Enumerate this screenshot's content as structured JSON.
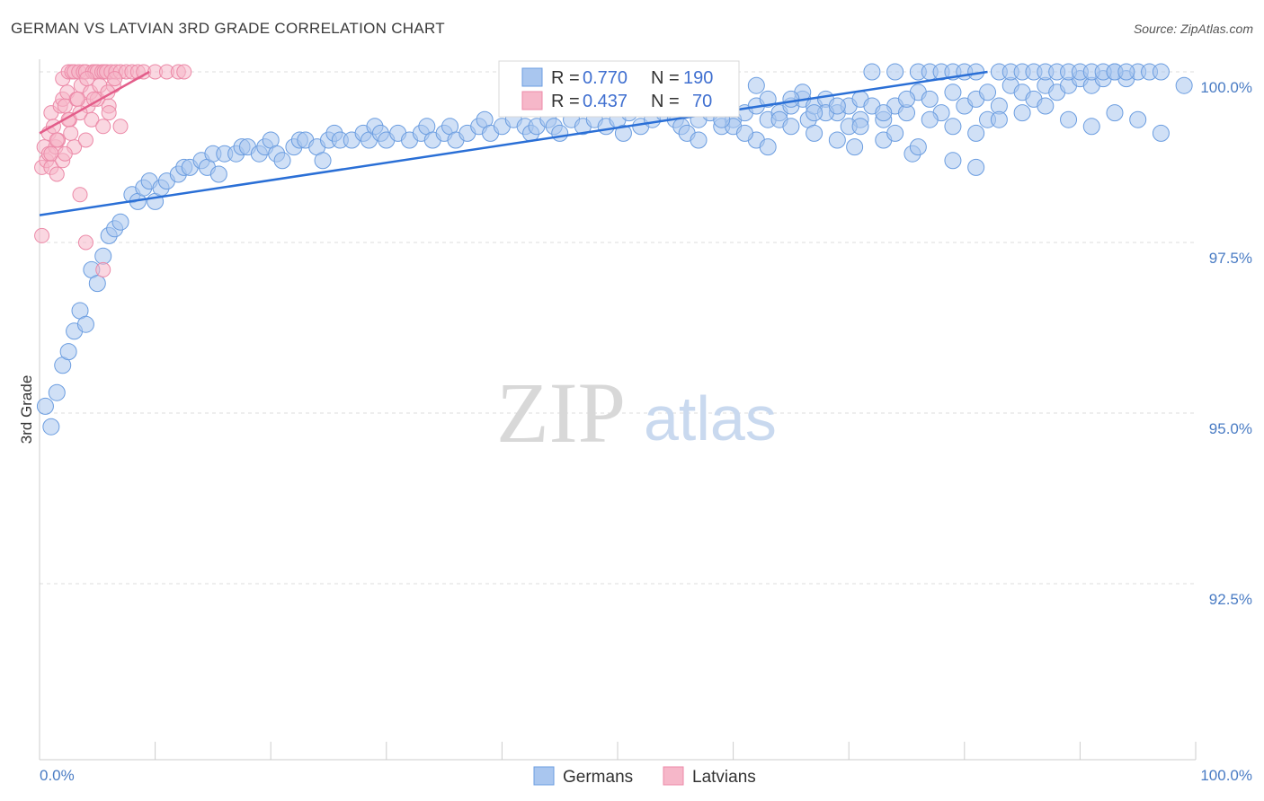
{
  "header": {
    "title": "GERMAN VS LATVIAN 3RD GRADE CORRELATION CHART",
    "source": "Source: ZipAtlas.com"
  },
  "watermark": {
    "zip": "ZIP",
    "atlas": "atlas"
  },
  "stats": {
    "germans": {
      "r_label": "R = ",
      "r_value": "0.770",
      "n_label": "N = ",
      "n_value": "190"
    },
    "latvians": {
      "r_label": "R = ",
      "r_value": "0.437",
      "n_label": "N = ",
      "n_value": "70"
    }
  },
  "legend": {
    "germans": "Germans",
    "latvians": "Latvians"
  },
  "colors": {
    "germans_fill": "#a9c6ef",
    "germans_stroke": "#6b9de0",
    "germans_line": "#2a6fd6",
    "latvians_fill": "#f6b7c9",
    "latvians_stroke": "#ec8aa8",
    "latvians_line": "#e35d8a",
    "tick_text": "#4a7cc4",
    "grid": "#dddddd"
  },
  "chart_data": {
    "type": "scatter",
    "title": "GERMAN VS LATVIAN 3RD GRADE CORRELATION CHART",
    "xlabel": "",
    "ylabel": "3rd Grade",
    "xlim": [
      0,
      100
    ],
    "ylim": [
      90.0,
      100.2
    ],
    "x_tick_labels": [
      "0.0%",
      "100.0%"
    ],
    "y_ticks": [
      100.0,
      97.5,
      95.0,
      92.5
    ],
    "y_tick_labels": [
      "100.0%",
      "97.5%",
      "95.0%",
      "92.5%"
    ],
    "grid": true,
    "legend_position": "bottom-center",
    "series": [
      {
        "name": "Germans",
        "trend": [
          [
            0,
            97.9
          ],
          [
            82,
            100.0
          ]
        ],
        "points": [
          [
            0.5,
            95.1
          ],
          [
            1,
            94.8
          ],
          [
            1.5,
            95.3
          ],
          [
            2,
            95.7
          ],
          [
            2.5,
            95.9
          ],
          [
            3,
            96.2
          ],
          [
            3.5,
            96.5
          ],
          [
            4,
            96.3
          ],
          [
            4.5,
            97.1
          ],
          [
            5,
            96.9
          ],
          [
            5.5,
            97.3
          ],
          [
            6,
            97.6
          ],
          [
            6.5,
            97.7
          ],
          [
            7,
            97.8
          ],
          [
            8,
            98.2
          ],
          [
            8.5,
            98.1
          ],
          [
            9,
            98.3
          ],
          [
            9.5,
            98.4
          ],
          [
            10,
            98.1
          ],
          [
            10.5,
            98.3
          ],
          [
            11,
            98.4
          ],
          [
            12,
            98.5
          ],
          [
            12.5,
            98.6
          ],
          [
            13,
            98.6
          ],
          [
            14,
            98.7
          ],
          [
            14.5,
            98.6
          ],
          [
            15,
            98.8
          ],
          [
            15.5,
            98.5
          ],
          [
            16,
            98.8
          ],
          [
            17,
            98.8
          ],
          [
            17.5,
            98.9
          ],
          [
            18,
            98.9
          ],
          [
            19,
            98.8
          ],
          [
            19.5,
            98.9
          ],
          [
            20,
            99.0
          ],
          [
            20.5,
            98.8
          ],
          [
            21,
            98.7
          ],
          [
            22,
            98.9
          ],
          [
            22.5,
            99.0
          ],
          [
            23,
            99.0
          ],
          [
            24,
            98.9
          ],
          [
            24.5,
            98.7
          ],
          [
            25,
            99.0
          ],
          [
            25.5,
            99.1
          ],
          [
            26,
            99.0
          ],
          [
            27,
            99.0
          ],
          [
            28,
            99.1
          ],
          [
            28.5,
            99.0
          ],
          [
            29,
            99.2
          ],
          [
            29.5,
            99.1
          ],
          [
            30,
            99.0
          ],
          [
            31,
            99.1
          ],
          [
            32,
            99.0
          ],
          [
            33,
            99.1
          ],
          [
            33.5,
            99.2
          ],
          [
            34,
            99.0
          ],
          [
            35,
            99.1
          ],
          [
            35.5,
            99.2
          ],
          [
            36,
            99.0
          ],
          [
            37,
            99.1
          ],
          [
            38,
            99.2
          ],
          [
            38.5,
            99.3
          ],
          [
            39,
            99.1
          ],
          [
            40,
            99.2
          ],
          [
            41,
            99.3
          ],
          [
            42,
            99.2
          ],
          [
            42.5,
            99.1
          ],
          [
            43,
            99.2
          ],
          [
            44,
            99.3
          ],
          [
            44.5,
            99.2
          ],
          [
            45,
            99.1
          ],
          [
            46,
            99.3
          ],
          [
            47,
            99.2
          ],
          [
            48,
            99.3
          ],
          [
            49,
            99.2
          ],
          [
            50,
            99.3
          ],
          [
            50.5,
            99.1
          ],
          [
            51,
            99.4
          ],
          [
            52,
            99.2
          ],
          [
            53,
            99.3
          ],
          [
            54,
            99.4
          ],
          [
            55,
            99.3
          ],
          [
            55.5,
            99.2
          ],
          [
            56,
            99.1
          ],
          [
            57,
            99.3
          ],
          [
            58,
            99.4
          ],
          [
            59,
            99.2
          ],
          [
            60,
            99.3
          ],
          [
            61,
            99.4
          ],
          [
            62,
            99.5
          ],
          [
            63,
            99.3
          ],
          [
            64,
            99.4
          ],
          [
            65,
            99.5
          ],
          [
            66,
            99.6
          ],
          [
            66.5,
            99.3
          ],
          [
            67,
            99.5
          ],
          [
            68,
            99.6
          ],
          [
            69,
            99.4
          ],
          [
            70,
            99.5
          ],
          [
            70.5,
            98.9
          ],
          [
            71,
            99.6
          ],
          [
            72,
            99.5
          ],
          [
            73,
            99.3
          ],
          [
            74,
            99.5
          ],
          [
            75,
            99.4
          ],
          [
            75.5,
            98.8
          ],
          [
            76,
            99.7
          ],
          [
            77,
            99.6
          ],
          [
            78,
            99.4
          ],
          [
            79,
            99.7
          ],
          [
            80,
            99.5
          ],
          [
            81,
            99.6
          ],
          [
            82,
            99.7
          ],
          [
            83,
            99.5
          ],
          [
            84,
            99.8
          ],
          [
            85,
            99.7
          ],
          [
            86,
            99.6
          ],
          [
            87,
            99.8
          ],
          [
            88,
            99.7
          ],
          [
            89,
            99.8
          ],
          [
            90,
            99.9
          ],
          [
            91,
            99.8
          ],
          [
            92,
            99.9
          ],
          [
            93,
            100.0
          ],
          [
            94,
            99.9
          ],
          [
            95,
            100.0
          ],
          [
            96,
            100.0
          ],
          [
            97,
            100.0
          ],
          [
            72,
            100.0
          ],
          [
            74,
            100.0
          ],
          [
            76,
            100.0
          ],
          [
            77,
            100.0
          ],
          [
            78,
            100.0
          ],
          [
            79,
            100.0
          ],
          [
            80,
            100.0
          ],
          [
            81,
            100.0
          ],
          [
            83,
            100.0
          ],
          [
            84,
            100.0
          ],
          [
            85,
            100.0
          ],
          [
            86,
            100.0
          ],
          [
            87,
            100.0
          ],
          [
            88,
            100.0
          ],
          [
            89,
            100.0
          ],
          [
            90,
            100.0
          ],
          [
            91,
            100.0
          ],
          [
            92,
            100.0
          ],
          [
            93,
            100.0
          ],
          [
            94,
            100.0
          ],
          [
            60,
            99.2
          ],
          [
            62,
            99.0
          ],
          [
            64,
            99.3
          ],
          [
            67,
            99.1
          ],
          [
            69,
            99.0
          ],
          [
            71,
            99.3
          ],
          [
            73,
            99.0
          ],
          [
            76,
            98.9
          ],
          [
            79,
            98.7
          ],
          [
            81,
            98.6
          ],
          [
            82,
            99.3
          ],
          [
            62,
            99.8
          ],
          [
            66,
            99.7
          ],
          [
            68,
            99.4
          ],
          [
            70,
            99.2
          ],
          [
            74,
            99.1
          ],
          [
            63,
            99.6
          ],
          [
            65,
            99.6
          ],
          [
            58,
            99.5
          ],
          [
            56,
            99.6
          ],
          [
            57,
            99.0
          ],
          [
            59,
            99.3
          ],
          [
            61,
            99.1
          ],
          [
            63,
            98.9
          ],
          [
            65,
            99.2
          ],
          [
            67,
            99.4
          ],
          [
            69,
            99.5
          ],
          [
            71,
            99.2
          ],
          [
            73,
            99.4
          ],
          [
            75,
            99.6
          ],
          [
            77,
            99.3
          ],
          [
            79,
            99.2
          ],
          [
            81,
            99.1
          ],
          [
            83,
            99.3
          ],
          [
            85,
            99.4
          ],
          [
            87,
            99.5
          ],
          [
            89,
            99.3
          ],
          [
            91,
            99.2
          ],
          [
            93,
            99.4
          ],
          [
            95,
            99.3
          ],
          [
            97,
            99.1
          ],
          [
            99,
            99.8
          ]
        ]
      },
      {
        "name": "Latvians",
        "trend": [
          [
            0,
            99.1
          ],
          [
            9.5,
            100.0
          ]
        ],
        "points": [
          [
            0.2,
            97.6
          ],
          [
            0.2,
            98.6
          ],
          [
            0.4,
            98.9
          ],
          [
            0.6,
            98.7
          ],
          [
            0.8,
            99.1
          ],
          [
            0.8,
            98.8
          ],
          [
            1,
            99.4
          ],
          [
            1,
            98.6
          ],
          [
            1.2,
            99.2
          ],
          [
            1.4,
            98.9
          ],
          [
            1.5,
            98.5
          ],
          [
            1.6,
            99.0
          ],
          [
            1.8,
            99.5
          ],
          [
            2,
            99.6
          ],
          [
            2,
            99.9
          ],
          [
            2.2,
            99.5
          ],
          [
            2.4,
            99.7
          ],
          [
            2.5,
            100.0
          ],
          [
            2.6,
            99.3
          ],
          [
            2.8,
            100.0
          ],
          [
            3,
            100.0
          ],
          [
            3.2,
            99.6
          ],
          [
            3.4,
            100.0
          ],
          [
            3.6,
            99.8
          ],
          [
            3.8,
            100.0
          ],
          [
            4,
            100.0
          ],
          [
            4.2,
            99.5
          ],
          [
            4.4,
            99.7
          ],
          [
            4.6,
            100.0
          ],
          [
            4.8,
            100.0
          ],
          [
            5,
            100.0
          ],
          [
            5.2,
            99.8
          ],
          [
            5.4,
            100.0
          ],
          [
            5.6,
            100.0
          ],
          [
            5.8,
            100.0
          ],
          [
            6,
            99.5
          ],
          [
            6.2,
            100.0
          ],
          [
            6.4,
            99.8
          ],
          [
            6.6,
            100.0
          ],
          [
            7,
            100.0
          ],
          [
            7.5,
            100.0
          ],
          [
            8,
            100.0
          ],
          [
            8.5,
            100.0
          ],
          [
            9,
            100.0
          ],
          [
            10,
            100.0
          ],
          [
            11,
            100.0
          ],
          [
            12,
            100.0
          ],
          [
            12.5,
            100.0
          ],
          [
            1,
            98.8
          ],
          [
            1.5,
            99.0
          ],
          [
            2,
            98.7
          ],
          [
            2.5,
            99.3
          ],
          [
            3,
            98.9
          ],
          [
            3.5,
            99.4
          ],
          [
            4,
            99.0
          ],
          [
            4.5,
            99.3
          ],
          [
            5,
            99.6
          ],
          [
            5.5,
            99.2
          ],
          [
            6,
            99.4
          ],
          [
            6.5,
            99.9
          ],
          [
            7,
            99.2
          ],
          [
            3.5,
            98.2
          ],
          [
            4,
            97.5
          ],
          [
            5.5,
            97.1
          ],
          [
            2.2,
            98.8
          ],
          [
            2.7,
            99.1
          ],
          [
            3.3,
            99.6
          ],
          [
            4.1,
            99.9
          ],
          [
            4.7,
            99.6
          ],
          [
            5.9,
            99.7
          ]
        ]
      }
    ]
  }
}
